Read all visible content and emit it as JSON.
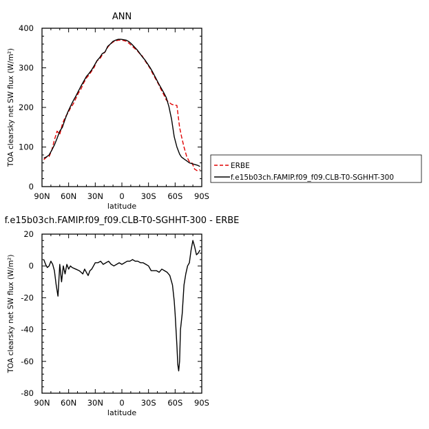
{
  "chart_data": [
    {
      "type": "line",
      "title": "ANN",
      "xlabel": "latitude",
      "ylabel": "TOA clearsky net SW flux (W/m²)",
      "xlim": [
        -90,
        90
      ],
      "ylim": [
        0,
        400
      ],
      "x_ticks": [
        -90,
        -60,
        -30,
        0,
        30,
        60,
        90
      ],
      "x_tick_labels": [
        "90N",
        "60N",
        "30N",
        "0",
        "30S",
        "60S",
        "90S"
      ],
      "y_ticks": [
        0,
        100,
        200,
        300,
        400
      ],
      "y_tick_labels": [
        "0",
        "100",
        "200",
        "300",
        "400"
      ],
      "legend_position": "right",
      "series": [
        {
          "name": "ERBE",
          "color": "#e00000",
          "dash": "dashed",
          "x": [
            -88,
            -85,
            -82,
            -79,
            -76,
            -73,
            -70,
            -67,
            -64,
            -61,
            -58,
            -55,
            -52,
            -49,
            -46,
            -43,
            -40,
            -37,
            -34,
            -31,
            -28,
            -25,
            -22,
            -19,
            -16,
            -13,
            -10,
            -7,
            -4,
            -1,
            2,
            5,
            8,
            11,
            14,
            17,
            20,
            23,
            26,
            29,
            32,
            35,
            38,
            41,
            44,
            47,
            50,
            53,
            56,
            59,
            62,
            65,
            67,
            70,
            73,
            76,
            79,
            82,
            85,
            88
          ],
          "y": [
            68,
            74,
            76,
            92,
            118,
            140,
            132,
            158,
            175,
            185,
            198,
            208,
            222,
            236,
            247,
            262,
            274,
            282,
            292,
            302,
            318,
            322,
            333,
            340,
            352,
            360,
            365,
            368,
            370,
            370,
            369,
            367,
            362,
            356,
            350,
            344,
            336,
            330,
            318,
            308,
            298,
            284,
            272,
            260,
            246,
            233,
            219,
            213,
            208,
            206,
            205,
            150,
            128,
            100,
            76,
            63,
            60,
            44,
            40,
            43
          ]
        },
        {
          "name": "f.e15b03ch.FAMIP.f09_f09.CLB-T0-SGHHT-300",
          "color": "#000000",
          "dash": "solid",
          "x": [
            -88,
            -85,
            -82,
            -79,
            -76,
            -73,
            -70,
            -67,
            -64,
            -61,
            -58,
            -55,
            -52,
            -49,
            -46,
            -43,
            -40,
            -37,
            -34,
            -31,
            -28,
            -25,
            -22,
            -19,
            -16,
            -13,
            -10,
            -7,
            -4,
            -1,
            2,
            5,
            8,
            11,
            14,
            17,
            20,
            23,
            26,
            29,
            32,
            35,
            38,
            41,
            44,
            47,
            50,
            53,
            56,
            59,
            62,
            65,
            67,
            70,
            73,
            76,
            79,
            82,
            85,
            88
          ],
          "y": [
            72,
            75,
            80,
            92,
            105,
            122,
            140,
            150,
            170,
            188,
            202,
            216,
            228,
            241,
            254,
            266,
            278,
            286,
            295,
            306,
            318,
            326,
            336,
            340,
            354,
            360,
            367,
            370,
            372,
            372,
            371,
            370,
            366,
            360,
            353,
            346,
            337,
            328,
            320,
            310,
            300,
            288,
            275,
            262,
            250,
            238,
            225,
            202,
            170,
            126,
            100,
            82,
            75,
            70,
            65,
            60,
            58,
            56,
            54,
            51
          ]
        }
      ]
    },
    {
      "type": "line",
      "title": "f.e15b03ch.FAMIP.f09_f09.CLB-T0-SGHHT-300 - ERBE",
      "xlabel": "latitude",
      "ylabel": "TOA clearsky net SW flux (W/m²)",
      "xlim": [
        -90,
        90
      ],
      "ylim": [
        -80,
        20
      ],
      "x_ticks": [
        -90,
        -60,
        -30,
        0,
        30,
        60,
        90
      ],
      "x_tick_labels": [
        "90N",
        "60N",
        "30N",
        "0",
        "30S",
        "60S",
        "90S"
      ],
      "y_ticks": [
        -80,
        -60,
        -40,
        -20,
        0,
        20
      ],
      "y_tick_labels": [
        "-80",
        "-60",
        "-40",
        "-20",
        "0",
        "20"
      ],
      "series": [
        {
          "color": "#000000",
          "dash": "solid",
          "x": [
            -88,
            -86,
            -84,
            -82,
            -80,
            -78,
            -76,
            -74,
            -72,
            -70,
            -68,
            -66,
            -64,
            -62,
            -60,
            -58,
            -56,
            -52,
            -48,
            -46,
            -44,
            -42,
            -40,
            -38,
            -36,
            -34,
            -32,
            -30,
            -27,
            -24,
            -21,
            -18,
            -15,
            -12,
            -9,
            -6,
            -3,
            0,
            3,
            6,
            9,
            12,
            15,
            18,
            21,
            24,
            27,
            30,
            33,
            36,
            39,
            42,
            45,
            48,
            51,
            54,
            57,
            59,
            60,
            61,
            62,
            63,
            64,
            65,
            66,
            68,
            70,
            72,
            74,
            76,
            78,
            80,
            82,
            84,
            86,
            88
          ],
          "y": [
            4,
            1,
            -1,
            0,
            3,
            1,
            -3,
            -12,
            -19,
            1,
            -10,
            0,
            -5,
            1,
            -2,
            0,
            -1,
            -2,
            -3,
            -4,
            -5,
            -2,
            -4,
            -6,
            -3,
            -2,
            0,
            2,
            2,
            3,
            1,
            2,
            3,
            1,
            0,
            1,
            2,
            1,
            2,
            3,
            3,
            4,
            3,
            3,
            2,
            2,
            1,
            0,
            -3,
            -3,
            -3,
            -4,
            -2,
            -3,
            -4,
            -6,
            -12,
            -22,
            -30,
            -40,
            -50,
            -62,
            -66,
            -60,
            -40,
            -30,
            -12,
            -5,
            0,
            2,
            10,
            16,
            12,
            7,
            8,
            10
          ]
        }
      ]
    }
  ]
}
